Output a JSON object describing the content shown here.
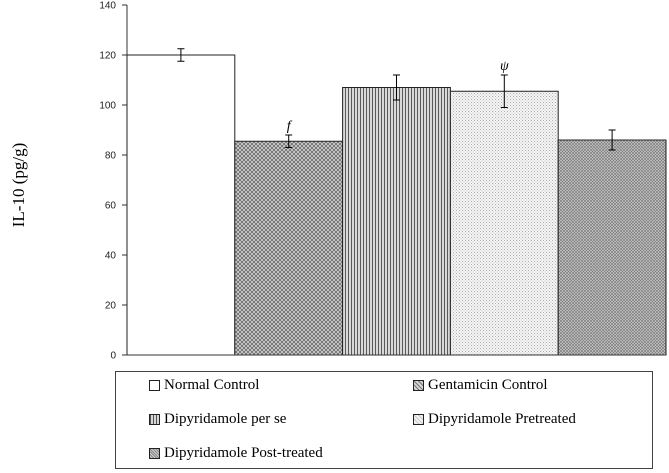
{
  "chart_data": {
    "type": "bar",
    "title": "",
    "xlabel": "",
    "ylabel": "IL-10 (pg/g)",
    "ylim": [
      0,
      140
    ],
    "yticks": [
      0,
      20,
      40,
      60,
      80,
      100,
      120,
      140
    ],
    "grid": false,
    "legend_position": "bottom",
    "bars": [
      {
        "name": "Normal Control",
        "value": 120,
        "error": 2.5,
        "annotation": "",
        "pattern": "white"
      },
      {
        "name": "Gentamicin Control",
        "value": 85.5,
        "error": 2.5,
        "annotation": "f",
        "pattern": "crosshatch"
      },
      {
        "name": "Dipyridamole per se",
        "value": 107,
        "error": 5,
        "annotation": "",
        "pattern": "vertical-lines"
      },
      {
        "name": "Dipyridamole Pretreated",
        "value": 105.5,
        "error": 6.5,
        "annotation": "ψ",
        "pattern": "light-dots"
      },
      {
        "name": "Dipyridamole Post-treated",
        "value": 86,
        "error": 4,
        "annotation": "",
        "pattern": "dense-check"
      }
    ]
  }
}
